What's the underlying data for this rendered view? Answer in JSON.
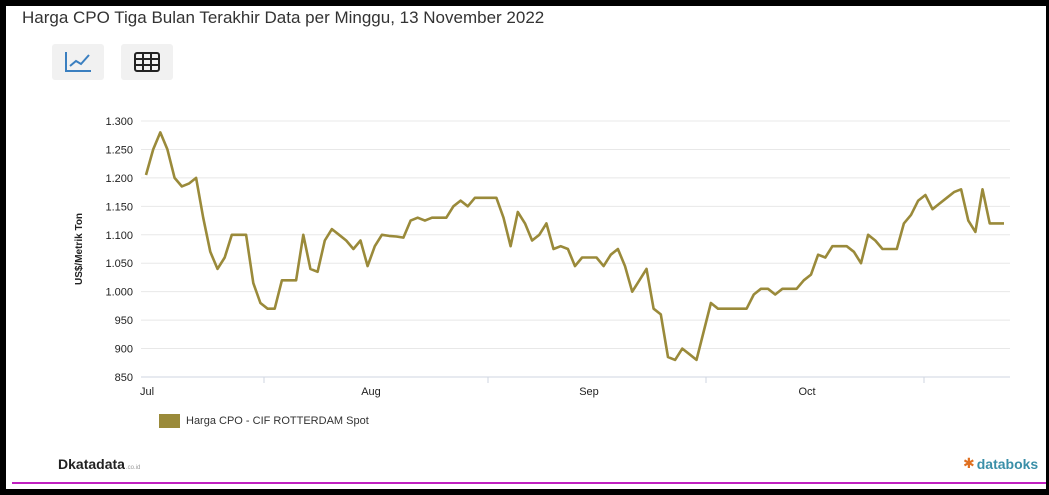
{
  "title": "Harga CPO Tiga Bulan Terakhir Data per Minggu, 13 November 2022",
  "toolbar": {
    "line_view_icon": "line-chart-icon",
    "table_view_icon": "table-grid-icon"
  },
  "logos": {
    "left_main": "katadata",
    "left_suffix": ".co.id",
    "right": "databoks"
  },
  "colors": {
    "series": "#9a8a3a",
    "gridline": "#e8e8e8",
    "axis_text": "#222222",
    "accent_rule": "#c020c0"
  },
  "chart_data": {
    "type": "line",
    "title": "Harga CPO Tiga Bulan Terakhir Data per Minggu, 13 November 2022",
    "xlabel": "",
    "ylabel": "US$/Metrik Ton",
    "ylim": [
      850,
      1300
    ],
    "yticks": [
      850,
      900,
      950,
      1000,
      1050,
      1100,
      1150,
      1200,
      1250,
      1300
    ],
    "ytick_labels": [
      "850",
      "900",
      "950",
      "1.000",
      "1.050",
      "1.100",
      "1.150",
      "1.200",
      "1.250",
      "1.300"
    ],
    "xtick_labels": [
      "Jul",
      "Aug",
      "Sep",
      "Oct"
    ],
    "grid": "horizontal",
    "legend": "bottom-left",
    "series": [
      {
        "name": "Harga CPO - CIF ROTTERDAM Spot",
        "values": [
          1205,
          1250,
          1280,
          1250,
          1200,
          1185,
          1190,
          1200,
          1130,
          1070,
          1040,
          1060,
          1100,
          1100,
          1100,
          1015,
          980,
          970,
          970,
          1020,
          1020,
          1020,
          1100,
          1040,
          1035,
          1090,
          1110,
          1100,
          1090,
          1075,
          1090,
          1045,
          1080,
          1100,
          1098,
          1097,
          1095,
          1125,
          1130,
          1125,
          1130,
          1130,
          1130,
          1150,
          1160,
          1150,
          1165,
          1165,
          1165,
          1165,
          1130,
          1080,
          1140,
          1120,
          1090,
          1100,
          1120,
          1075,
          1080,
          1075,
          1045,
          1060,
          1060,
          1060,
          1045,
          1065,
          1075,
          1045,
          1000,
          1020,
          1040,
          970,
          960,
          885,
          880,
          900,
          890,
          880,
          930,
          980,
          970,
          970,
          970,
          970,
          970,
          995,
          1005,
          1005,
          995,
          1005,
          1005,
          1005,
          1020,
          1030,
          1065,
          1060,
          1080,
          1080,
          1080,
          1070,
          1050,
          1100,
          1090,
          1075,
          1075,
          1075,
          1120,
          1135,
          1160,
          1170,
          1145,
          1155,
          1165,
          1175,
          1180,
          1125,
          1105,
          1180,
          1120,
          1120,
          1120
        ]
      }
    ]
  }
}
